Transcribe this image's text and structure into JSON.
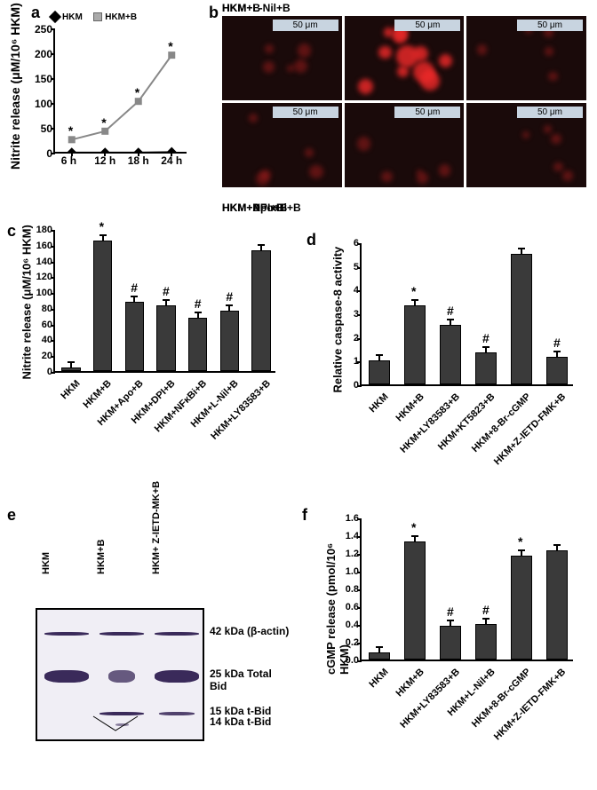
{
  "panel_a": {
    "label": "a",
    "type": "line",
    "ylabel": "Nitrite release (μM/10⁶ HKM)",
    "ylim": [
      0,
      250
    ],
    "ytick_step": 50,
    "categories": [
      "6 h",
      "12 h",
      "18 h",
      "24 h"
    ],
    "series": [
      {
        "name": "HKM",
        "color": "#000000",
        "marker": "diamond",
        "values": [
          2,
          2,
          2,
          3
        ]
      },
      {
        "name": "HKM+B",
        "color": "#888888",
        "marker": "square",
        "values": [
          28,
          45,
          105,
          198
        ]
      }
    ],
    "significance": [
      "*",
      "*",
      "*",
      "*"
    ]
  },
  "panel_b": {
    "label": "b",
    "type": "microscopy",
    "scale_text": "50 μm",
    "images": [
      {
        "label": "HKM",
        "intensity": "low"
      },
      {
        "label": "HKM+B",
        "intensity": "high"
      },
      {
        "label": "HKM+L-Nil+B",
        "intensity": "low"
      },
      {
        "label": "HKM+Apo+B",
        "intensity": "low"
      },
      {
        "label": "HKM+DPI+B",
        "intensity": "low"
      },
      {
        "label": "HKM+NF-κBi+B",
        "intensity": "low"
      }
    ]
  },
  "panel_c": {
    "label": "c",
    "type": "bar",
    "ylabel": "Nitrite release (μM/10⁶ HKM)",
    "ylim": [
      0,
      180
    ],
    "ytick_step": 20,
    "bar_color": "#3a3a3a",
    "bars": [
      {
        "label": "HKM",
        "value": 5,
        "sig": ""
      },
      {
        "label": "HKM+B",
        "value": 165,
        "sig": "*"
      },
      {
        "label": "HKM+Apo+B",
        "value": 88,
        "sig": "#"
      },
      {
        "label": "HKM+DPI+B",
        "value": 83,
        "sig": "#"
      },
      {
        "label": "HKM+NFκBi+B",
        "value": 68,
        "sig": "#"
      },
      {
        "label": "HKM+L-Nil+B",
        "value": 76,
        "sig": "#"
      },
      {
        "label": "HKM+LY83583+B",
        "value": 153,
        "sig": ""
      }
    ]
  },
  "panel_d": {
    "label": "d",
    "type": "bar",
    "ylabel": "Relative caspase-8 activity",
    "ylim": [
      0,
      6
    ],
    "ytick_step": 1,
    "bar_color": "#3a3a3a",
    "bars": [
      {
        "label": "HKM",
        "value": 1.0,
        "sig": ""
      },
      {
        "label": "HKM+B",
        "value": 3.35,
        "sig": "*"
      },
      {
        "label": "HKM+LY83583+B",
        "value": 2.5,
        "sig": "#"
      },
      {
        "label": "HKM+KT5823+B",
        "value": 1.35,
        "sig": "#"
      },
      {
        "label": "HKM+8-Br-cGMP",
        "value": 5.5,
        "sig": ""
      },
      {
        "label": "HKM+Z-IETD-FMK+B",
        "value": 1.15,
        "sig": "#"
      }
    ]
  },
  "panel_e": {
    "label": "e",
    "type": "western_blot",
    "lanes": [
      "HKM",
      "HKM+B",
      "HKM+ Z-IETD-MK+B"
    ],
    "bands": [
      {
        "name": "42 kDa (β-actin)",
        "y": 0.18,
        "thickness": 4,
        "pattern": [
          1,
          1,
          1
        ]
      },
      {
        "name": "25 kDa Total Bid",
        "y": 0.5,
        "thickness": 14,
        "pattern": [
          1,
          0.6,
          1
        ]
      },
      {
        "name": "15 kDa t-Bid",
        "y": 0.78,
        "thickness": 4,
        "pattern": [
          0,
          1,
          0.8
        ]
      },
      {
        "name": "14 kDa t-Bid",
        "y": 0.86,
        "thickness": 3,
        "pattern": [
          0,
          0.3,
          0
        ]
      }
    ]
  },
  "panel_f": {
    "label": "f",
    "type": "bar",
    "ylabel": "cGMP release (pmol/10⁶ HKM)",
    "ylim": [
      0,
      1.6
    ],
    "ytick_step": 0.2,
    "bar_color": "#3a3a3a",
    "bars": [
      {
        "label": "HKM",
        "value": 0.08,
        "sig": ""
      },
      {
        "label": "HKM+B",
        "value": 1.33,
        "sig": "*"
      },
      {
        "label": "HKM+LY83583+B",
        "value": 0.38,
        "sig": "#"
      },
      {
        "label": "HKM+L-Nil+B",
        "value": 0.4,
        "sig": "#"
      },
      {
        "label": "HKM+8-Br-cGMP",
        "value": 1.17,
        "sig": "*"
      },
      {
        "label": "HKM+Z-IETD-FMK+B",
        "value": 1.23,
        "sig": ""
      }
    ]
  }
}
